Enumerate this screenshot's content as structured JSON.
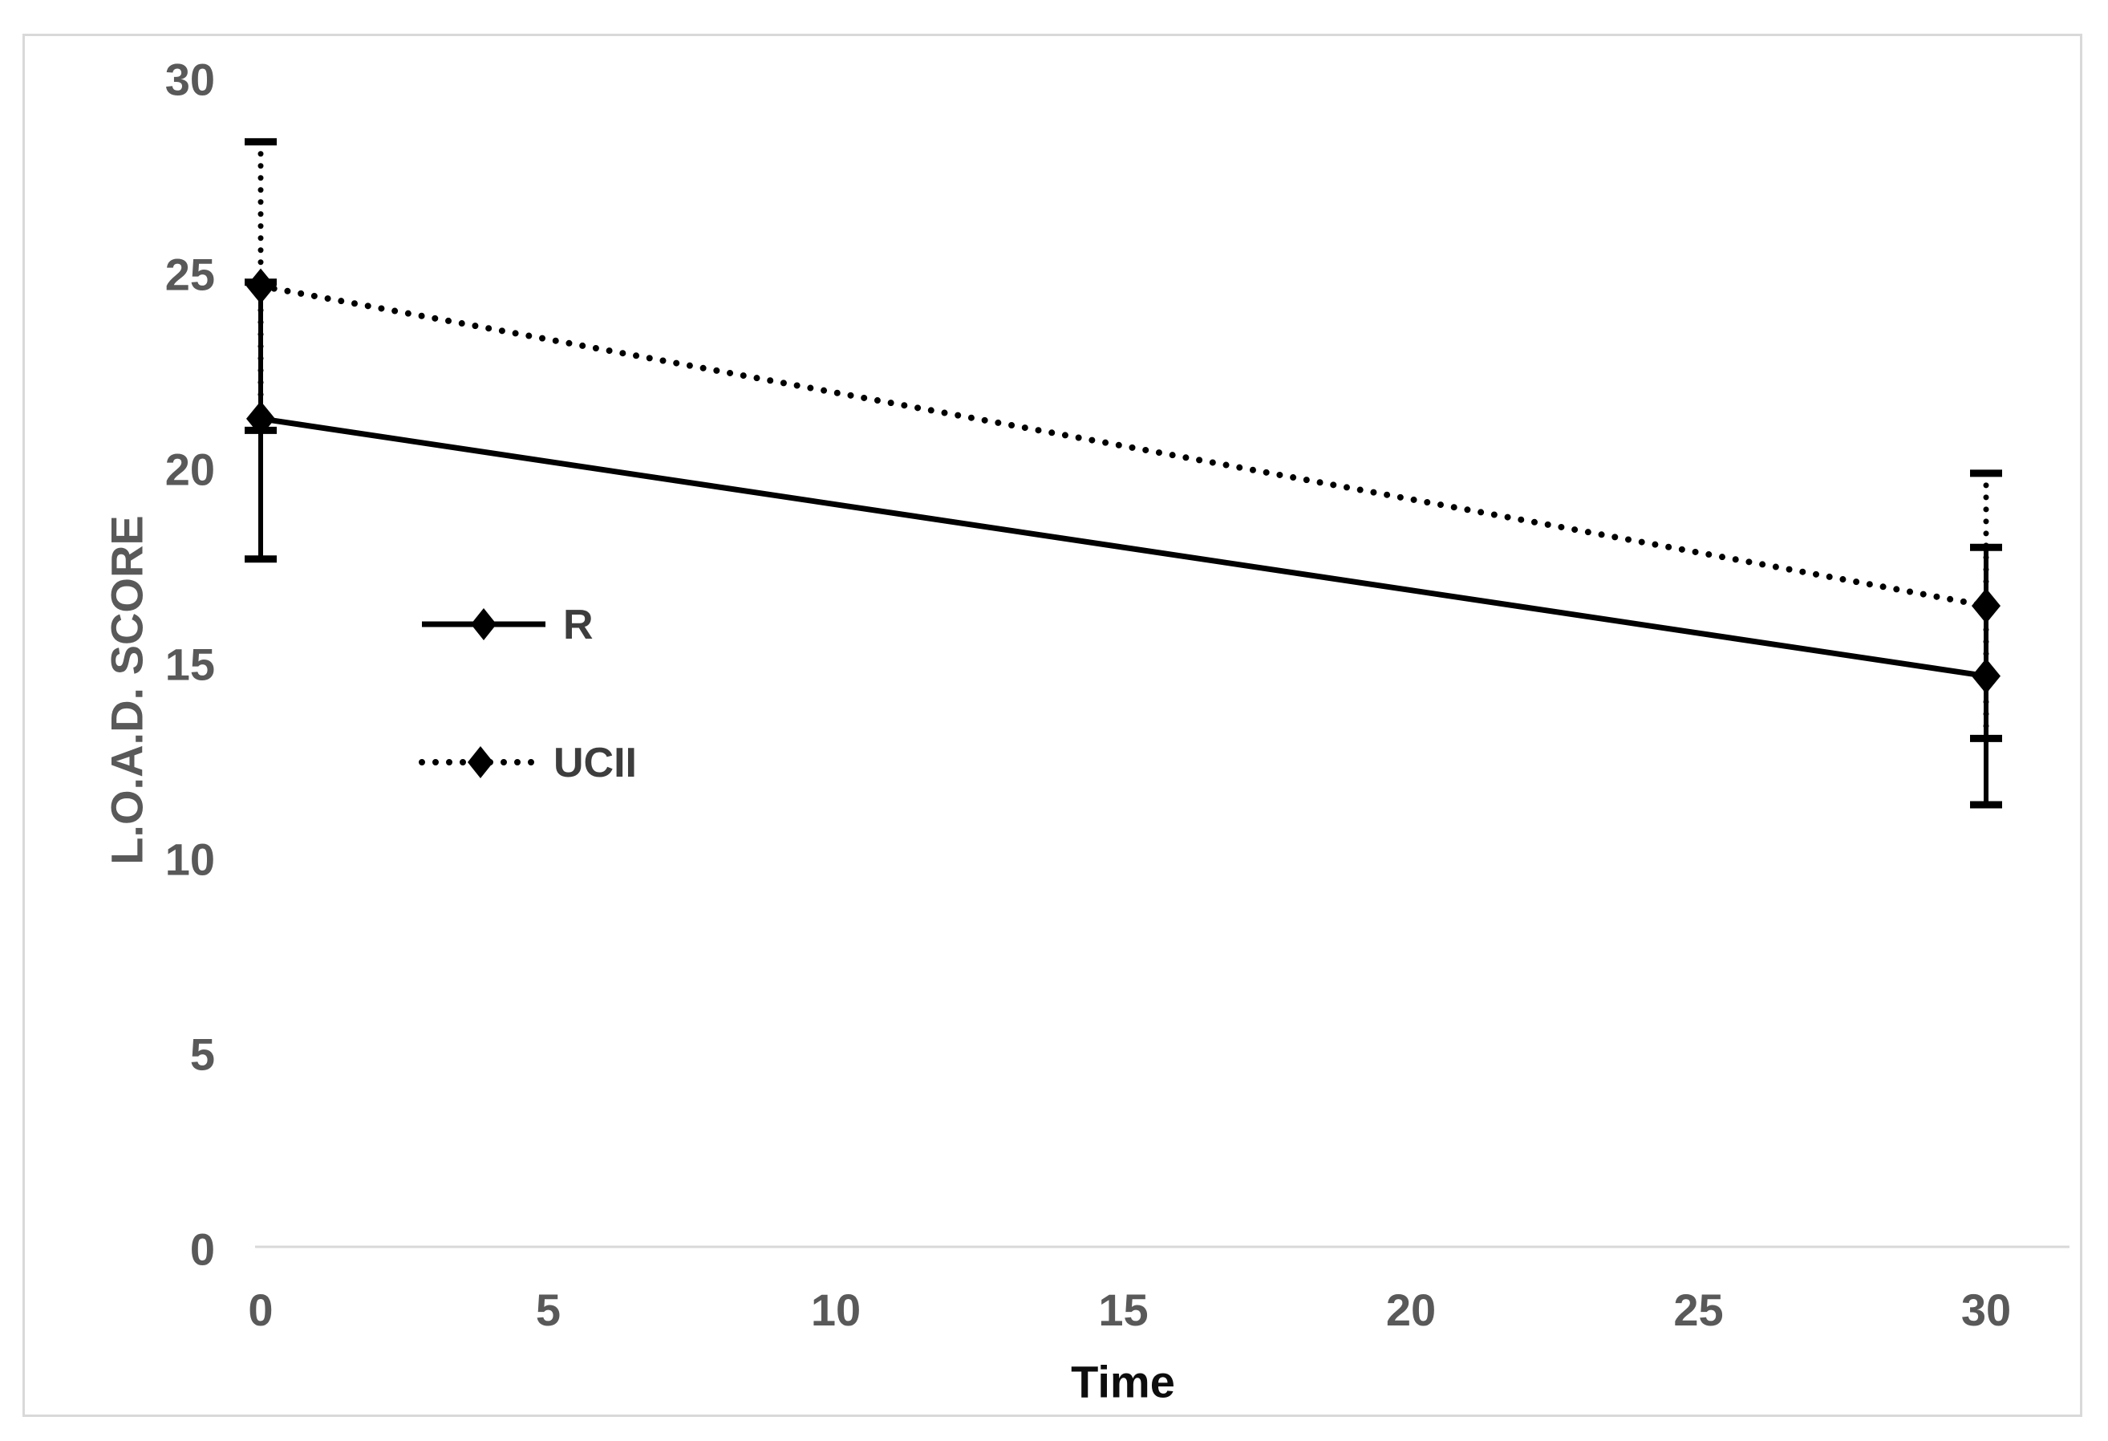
{
  "chart_data": {
    "type": "line",
    "title": "",
    "xlabel": "Time",
    "ylabel": "L.O.A.D. SCORE",
    "x": [
      0,
      30
    ],
    "x_ticks": [
      0,
      5,
      10,
      15,
      20,
      25,
      30
    ],
    "y_ticks": [
      0,
      5,
      10,
      15,
      20,
      25,
      30
    ],
    "xlim": [
      0,
      30
    ],
    "ylim": [
      0,
      30
    ],
    "grid": false,
    "legend_position": "inside-left-stacked",
    "series": [
      {
        "name": "R",
        "line_style": "solid",
        "marker": "diamond",
        "color": "#000000",
        "values": [
          21.3,
          14.7
        ],
        "error_plus": [
          3.5,
          3.3
        ],
        "error_minus": [
          3.6,
          3.3
        ]
      },
      {
        "name": "UCII",
        "line_style": "dotted",
        "marker": "diamond",
        "color": "#000000",
        "values": [
          24.7,
          16.5
        ],
        "error_plus": [
          3.7,
          3.4
        ],
        "error_minus": [
          3.7,
          3.4
        ]
      }
    ],
    "colors": {
      "series": "#000000",
      "tick_label": "#595959",
      "axis_title": "#595959",
      "x_title": "#0d0d0d",
      "legend_text": "#3d3d3d",
      "axis_line": "#d9d9d9",
      "frame_border": "#d9d9d9",
      "background": "#ffffff"
    }
  }
}
